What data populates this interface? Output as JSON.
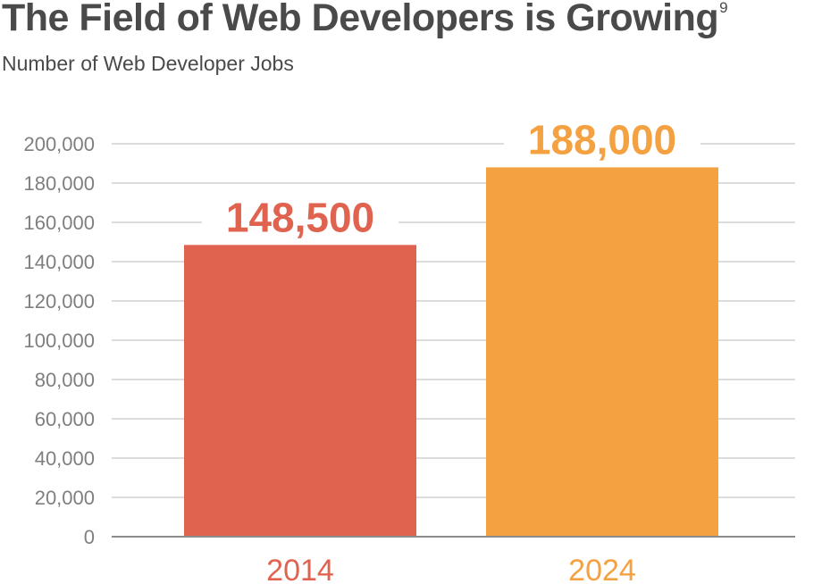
{
  "title": "The Field of Web Developers is Growing",
  "title_footnote": "9",
  "subtitle": "Number of Web Developer Jobs",
  "colors": {
    "text": "#4a4a4a",
    "axis_text": "#7f7f7f",
    "grid": "#c8c8c8",
    "baseline": "#8c8c8c",
    "bar_2014": "#e06350",
    "bar_2024": "#f4a142"
  },
  "chart_data": {
    "type": "bar",
    "title": "The Field of Web Developers is Growing",
    "subtitle": "Number of Web Developer Jobs",
    "categories": [
      "2014",
      "2024"
    ],
    "values": [
      148500,
      188000
    ],
    "data_labels": [
      "148,500",
      "188,000"
    ],
    "bar_colors": [
      "#e06350",
      "#f4a142"
    ],
    "yticks": [
      0,
      20000,
      40000,
      60000,
      80000,
      100000,
      120000,
      140000,
      160000,
      180000,
      200000
    ],
    "ytick_labels": [
      "0",
      "20,000",
      "40,000",
      "60,000",
      "80,000",
      "100,000",
      "120,000",
      "140,000",
      "160,000",
      "180,000",
      "200,000"
    ],
    "ylim": [
      0,
      200000
    ],
    "xlabel": "",
    "ylabel": "",
    "grid": true,
    "legend": "none"
  }
}
